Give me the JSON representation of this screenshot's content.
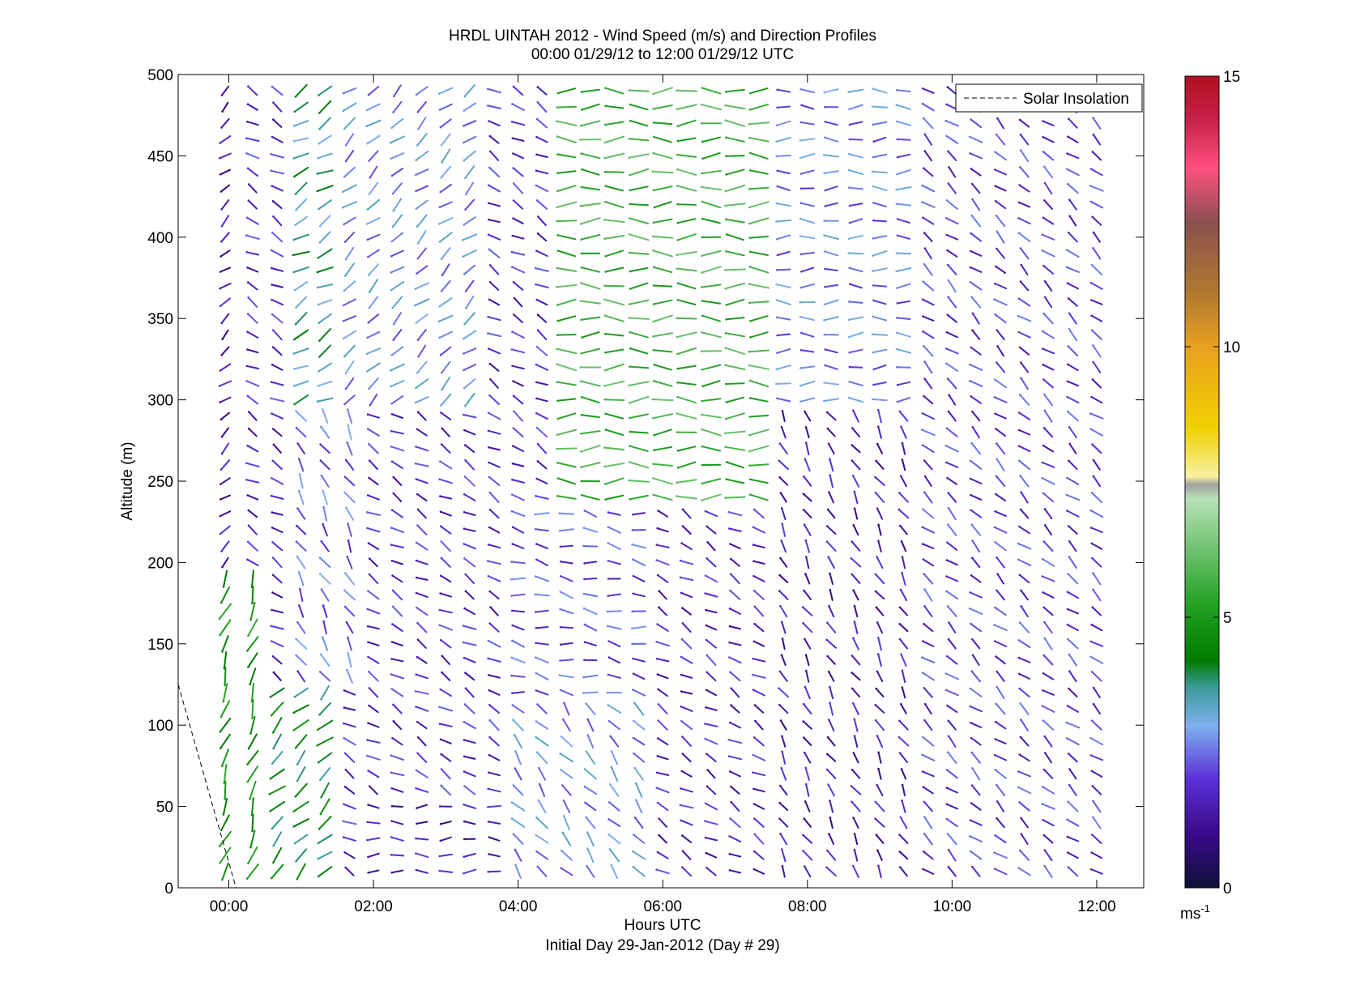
{
  "chart_data": {
    "type": "wind-barb-profile",
    "title": "HRDL UINTAH 2012 - Wind Speed (m/s) and Direction Profiles",
    "subtitle": "00:00 01/29/12 to 12:00 01/29/12  UTC",
    "xlabel": "Hours UTC",
    "xlabel2": "Initial Day 29-Jan-2012 (Day # 29)",
    "ylabel": "Altitude (m)",
    "xlim_hours": [
      -0.7,
      12.65
    ],
    "ylim": [
      0,
      500
    ],
    "x_ticks": [
      {
        "value": 0,
        "label": "00:00"
      },
      {
        "value": 2,
        "label": "02:00"
      },
      {
        "value": 4,
        "label": "04:00"
      },
      {
        "value": 6,
        "label": "06:00"
      },
      {
        "value": 8,
        "label": "08:00"
      },
      {
        "value": 10,
        "label": "10:00"
      },
      {
        "value": 12,
        "label": "12:00"
      }
    ],
    "y_ticks": [
      {
        "value": 0,
        "label": "0"
      },
      {
        "value": 50,
        "label": "50"
      },
      {
        "value": 100,
        "label": "100"
      },
      {
        "value": 150,
        "label": "150"
      },
      {
        "value": 200,
        "label": "200"
      },
      {
        "value": 250,
        "label": "250"
      },
      {
        "value": 300,
        "label": "300"
      },
      {
        "value": 350,
        "label": "350"
      },
      {
        "value": 400,
        "label": "400"
      },
      {
        "value": 450,
        "label": "450"
      },
      {
        "value": 500,
        "label": "500"
      }
    ],
    "legend": {
      "label": "Solar Insolation",
      "position": "top-right",
      "style": "dashed"
    },
    "solar_insolation": {
      "x": [
        -0.7,
        0.1
      ],
      "y": [
        125,
        0
      ]
    },
    "colorbar": {
      "range": [
        0,
        15
      ],
      "ticks": [
        {
          "value": 0,
          "label": "0"
        },
        {
          "value": 5,
          "label": "5"
        },
        {
          "value": 10,
          "label": "10"
        },
        {
          "value": 15,
          "label": "15"
        }
      ],
      "unit_label": "ms",
      "unit_exponent": "-1",
      "stops": [
        {
          "v": 0,
          "color": "#10103a"
        },
        {
          "v": 1,
          "color": "#3a0a8a"
        },
        {
          "v": 2,
          "color": "#5a30d8"
        },
        {
          "v": 3,
          "color": "#7fb0f0"
        },
        {
          "v": 3.7,
          "color": "#3a9a9a"
        },
        {
          "v": 4.2,
          "color": "#007a00"
        },
        {
          "v": 5.2,
          "color": "#20a020"
        },
        {
          "v": 7.2,
          "color": "#b8e0b8"
        },
        {
          "v": 7.45,
          "color": "#a0a0a0"
        },
        {
          "v": 7.6,
          "color": "#f8f0a0"
        },
        {
          "v": 8.5,
          "color": "#f0d000"
        },
        {
          "v": 10,
          "color": "#e8a020"
        },
        {
          "v": 11,
          "color": "#b07830"
        },
        {
          "v": 12.3,
          "color": "#8a5050"
        },
        {
          "v": 13.3,
          "color": "#ff5080"
        },
        {
          "v": 14.2,
          "color": "#c82048"
        },
        {
          "v": 15,
          "color": "#b01020"
        }
      ]
    },
    "barb_times": [
      -0.05,
      0.33,
      0.67,
      1.0,
      1.33,
      1.67,
      2.0,
      2.33,
      2.67,
      3.0,
      3.33,
      3.67,
      4.0,
      4.33,
      4.67,
      5.0,
      5.33,
      5.67,
      6.0,
      6.33,
      6.67,
      7.0,
      7.33,
      7.67,
      8.0,
      8.33,
      8.67,
      9.0,
      9.33,
      9.67,
      10.0,
      10.33,
      10.67,
      11.0,
      11.33,
      11.67,
      12.0
    ],
    "barb_altitudes": [
      10,
      20,
      30,
      40,
      50,
      60,
      70,
      80,
      90,
      100,
      110,
      120,
      130,
      140,
      150,
      160,
      170,
      180,
      190,
      200,
      210,
      220,
      230,
      240,
      250,
      260,
      270,
      280,
      290,
      300,
      310,
      320,
      330,
      340,
      350,
      360,
      370,
      380,
      390,
      400,
      410,
      420,
      430,
      440,
      450,
      460,
      470,
      480,
      490
    ],
    "wind_regimes": [
      {
        "t": [
          -0.2,
          0.5
        ],
        "z": [
          10,
          200
        ],
        "speed": 4.8,
        "dir": 200
      },
      {
        "t": [
          -0.2,
          0.3
        ],
        "z": [
          200,
          500
        ],
        "speed": 1.4,
        "dir": 230
      },
      {
        "t": [
          0.3,
          1.5
        ],
        "z": [
          10,
          130
        ],
        "speed": 4.2,
        "dir": 225
      },
      {
        "t": [
          0.3,
          1.0
        ],
        "z": [
          130,
          300
        ],
        "speed": 1.6,
        "dir": 300
      },
      {
        "t": [
          0.8,
          1.6
        ],
        "z": [
          300,
          500
        ],
        "speed": 3.6,
        "dir": 240
      },
      {
        "t": [
          1.0,
          2.0
        ],
        "z": [
          130,
          300
        ],
        "speed": 2.4,
        "dir": 330
      },
      {
        "t": [
          2.0,
          4.0
        ],
        "z": [
          10,
          60
        ],
        "speed": 1.5,
        "dir": 270
      },
      {
        "t": [
          2.0,
          4.0
        ],
        "z": [
          60,
          300
        ],
        "speed": 1.8,
        "dir": 300
      },
      {
        "t": [
          1.6,
          3.6
        ],
        "z": [
          300,
          500
        ],
        "speed": 2.8,
        "dir": 230
      },
      {
        "t": [
          4.0,
          5.8
        ],
        "z": [
          10,
          120
        ],
        "speed": 2.8,
        "dir": 320
      },
      {
        "t": [
          4.0,
          5.8
        ],
        "z": [
          120,
          240
        ],
        "speed": 2.2,
        "dir": 280
      },
      {
        "t": [
          4.4,
          7.6
        ],
        "z": [
          240,
          500
        ],
        "speed": 5.6,
        "dir": 270
      },
      {
        "t": [
          5.8,
          7.6
        ],
        "z": [
          10,
          240
        ],
        "speed": 1.7,
        "dir": 300
      },
      {
        "t": [
          7.6,
          9.6
        ],
        "z": [
          10,
          300
        ],
        "speed": 1.5,
        "dir": 330
      },
      {
        "t": [
          7.6,
          9.6
        ],
        "z": [
          300,
          500
        ],
        "speed": 2.6,
        "dir": 270
      },
      {
        "t": [
          9.6,
          12.2
        ],
        "z": [
          10,
          500
        ],
        "speed": 2.0,
        "dir": 310
      }
    ]
  }
}
